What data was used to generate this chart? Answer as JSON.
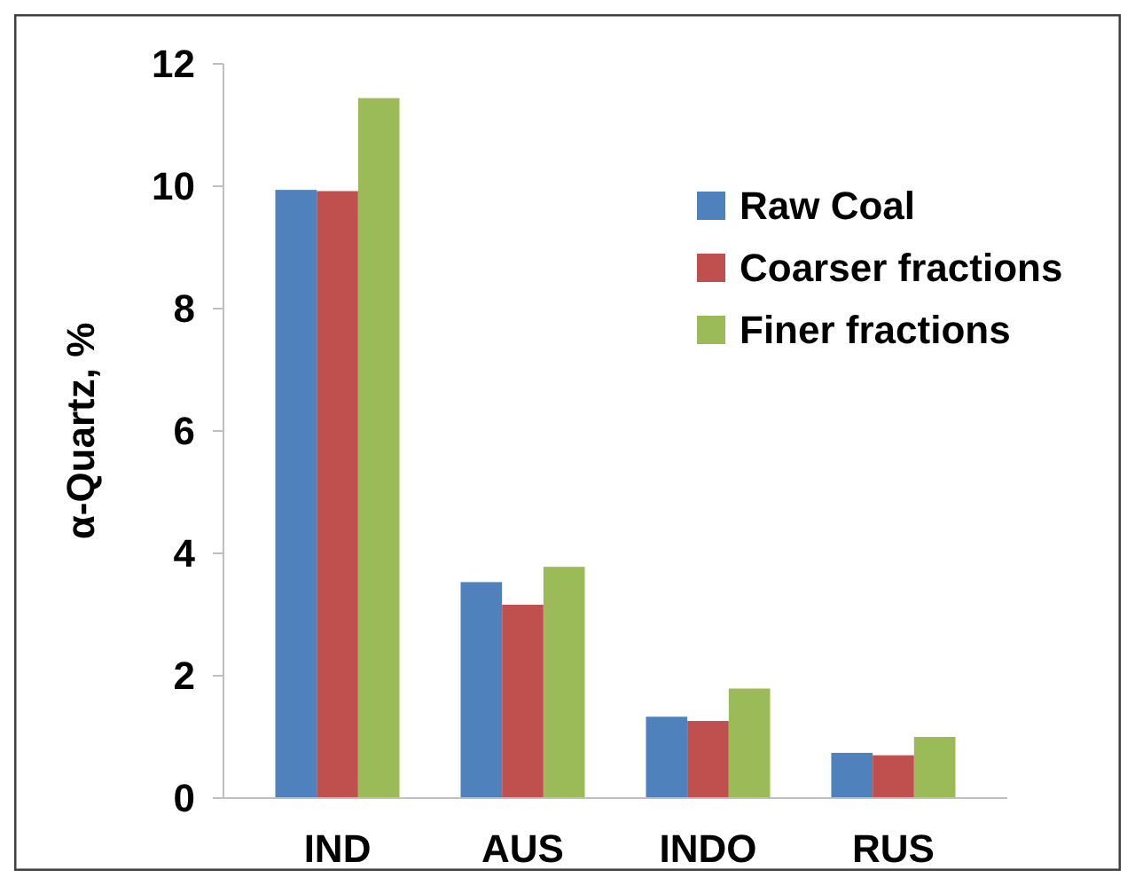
{
  "chart_data": {
    "type": "bar",
    "ylabel": "α-Quartz, %",
    "categories": [
      "IND",
      "AUS",
      "INDO",
      "RUS"
    ],
    "series": [
      {
        "name": "Raw Coal",
        "color": "#4f81bd",
        "values": [
          9.94,
          3.53,
          1.33,
          0.74
        ]
      },
      {
        "name": "Coarser fractions",
        "color": "#c0504d",
        "values": [
          9.92,
          3.16,
          1.26,
          0.7
        ]
      },
      {
        "name": "Finer fractions",
        "color": "#9bbb59",
        "values": [
          11.44,
          3.78,
          1.79,
          1.0
        ]
      }
    ],
    "ylim": [
      0,
      12
    ],
    "yticks": [
      0,
      2,
      4,
      6,
      8,
      10,
      12
    ],
    "grid": false,
    "legend": "top right"
  }
}
